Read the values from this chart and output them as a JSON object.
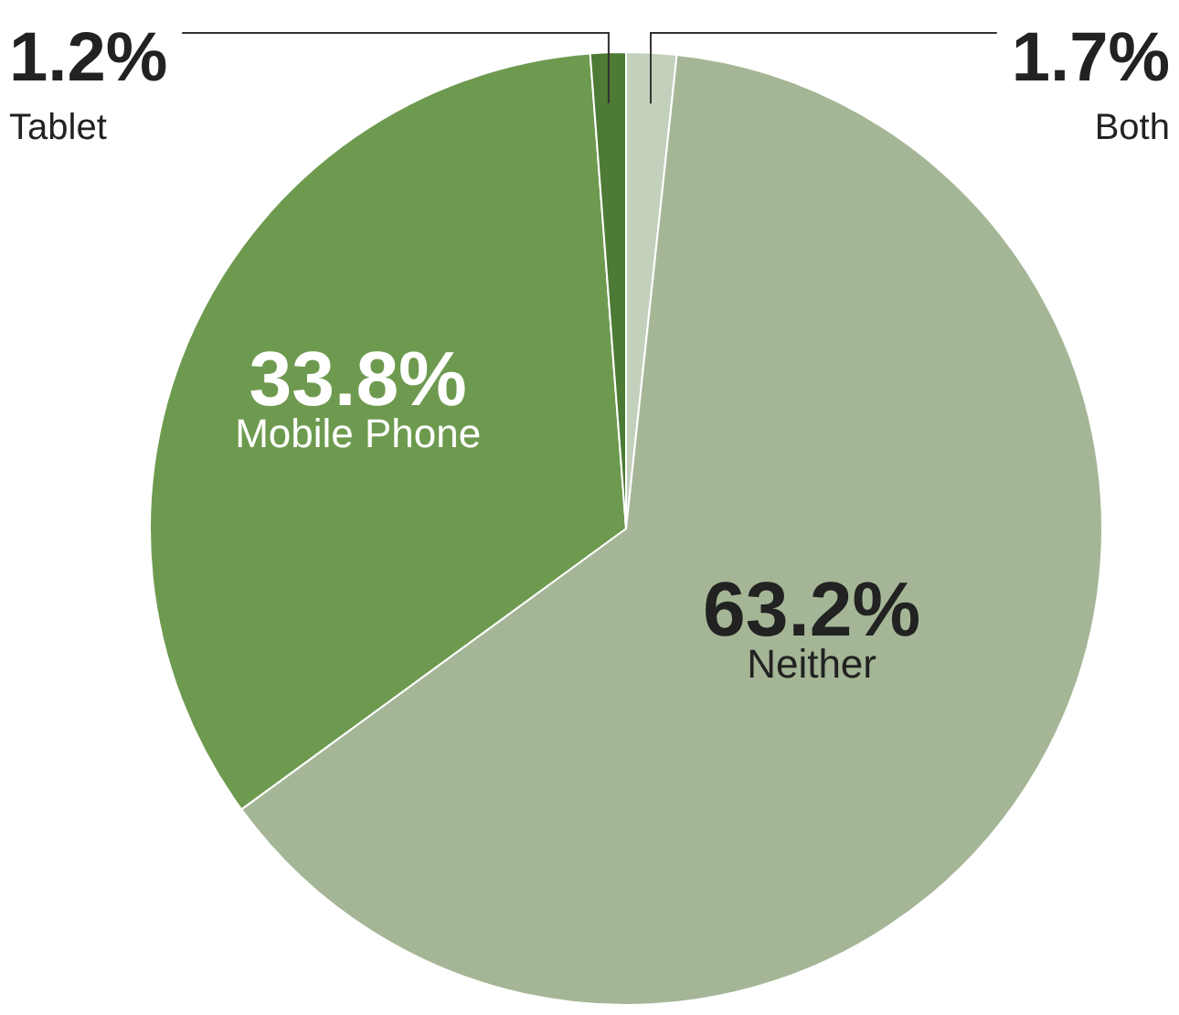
{
  "chart_data": {
    "type": "pie",
    "categories": [
      "Both",
      "Neither",
      "Mobile Phone",
      "Tablet"
    ],
    "values": [
      1.7,
      63.2,
      33.8,
      1.2
    ],
    "colors": [
      "#c3d0bc",
      "#a5b696",
      "#6e9a4f",
      "#4d7a34"
    ],
    "value_labels": [
      "1.7%",
      "63.2%",
      "33.8%",
      "1.2%"
    ]
  }
}
